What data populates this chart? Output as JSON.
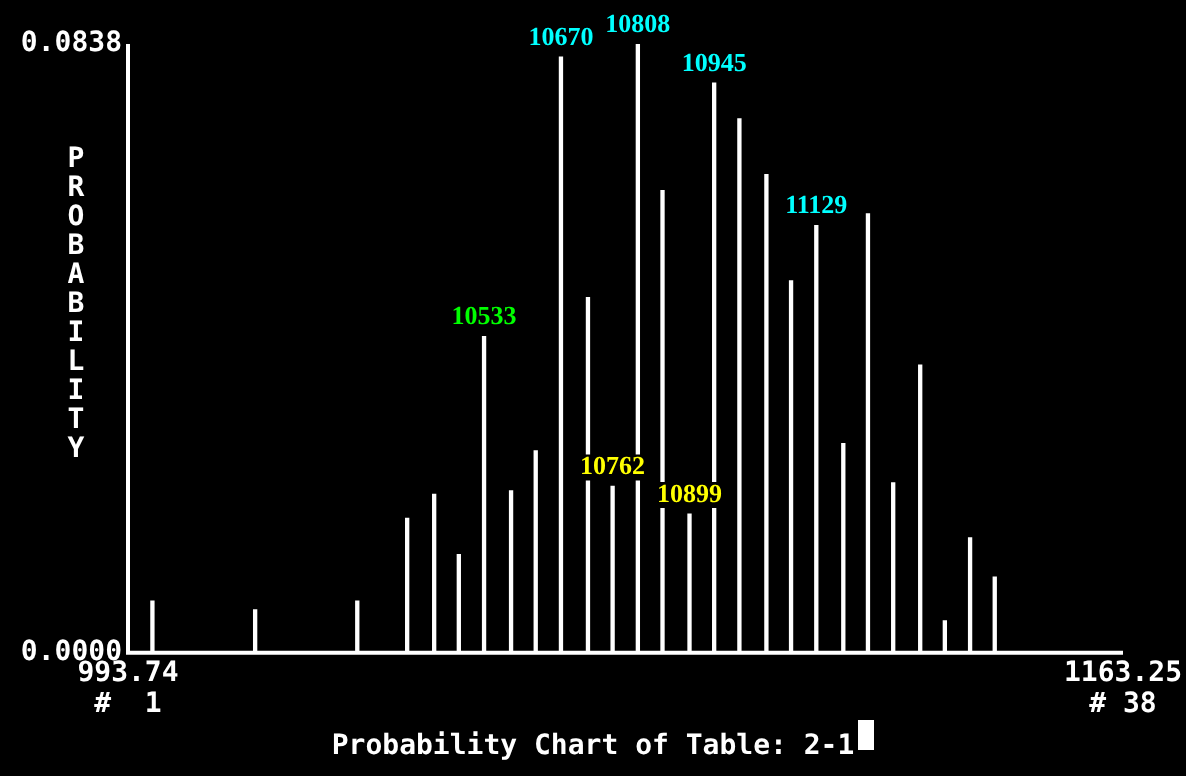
{
  "chart_data": {
    "type": "bar",
    "title": "Probability Chart of Table: 2-1",
    "ylabel": "PROBABILITY",
    "color": "#ffffff",
    "x": [
      997.9,
      1015.4,
      1032.8,
      1041.3,
      1045.9,
      1050.1,
      1054.4,
      1059.0,
      1063.2,
      1067.5,
      1072.1,
      1076.3,
      1080.6,
      1084.8,
      1089.4,
      1093.6,
      1097.9,
      1102.5,
      1106.7,
      1111.0,
      1115.6,
      1119.8,
      1124.1,
      1128.7,
      1132.9,
      1137.2,
      1141.4
    ],
    "values": [
      0.0071,
      0.0059,
      0.0071,
      0.0185,
      0.0218,
      0.0135,
      0.0435,
      0.0223,
      0.0278,
      0.082,
      0.0489,
      0.0229,
      0.0838,
      0.0636,
      0.0191,
      0.0784,
      0.0735,
      0.0658,
      0.0512,
      0.0588,
      0.0288,
      0.0604,
      0.0234,
      0.0396,
      0.0044,
      0.0158,
      0.0104
    ],
    "xlim": [
      993.74,
      1163.25
    ],
    "xticks": [
      993.74,
      1163.25
    ],
    "ylim": [
      0,
      0.0838
    ],
    "yticks": [
      {
        "value": 0,
        "label": "0.0000"
      },
      {
        "value": 0.0838,
        "label": "0.0838"
      }
    ],
    "annotations": [
      {
        "text": "10533",
        "x": 1054.4,
        "y": 0.0435
      },
      {
        "text": "10670",
        "x": 1067.5,
        "y": 0.082
      },
      {
        "text": "10808",
        "x": 1080.6,
        "y": 0.0838
      },
      {
        "text": "10945",
        "x": 1093.6,
        "y": 0.0784
      },
      {
        "text": "11129",
        "x": 1111.0,
        "y": 0.0588
      },
      {
        "text": "10762",
        "x": 1076.3,
        "y": 0.0229
      },
      {
        "text": "10899",
        "x": 1089.4,
        "y": 0.0191
      },
      "#  1",
      "# 38"
    ],
    "legend": false
  }
}
